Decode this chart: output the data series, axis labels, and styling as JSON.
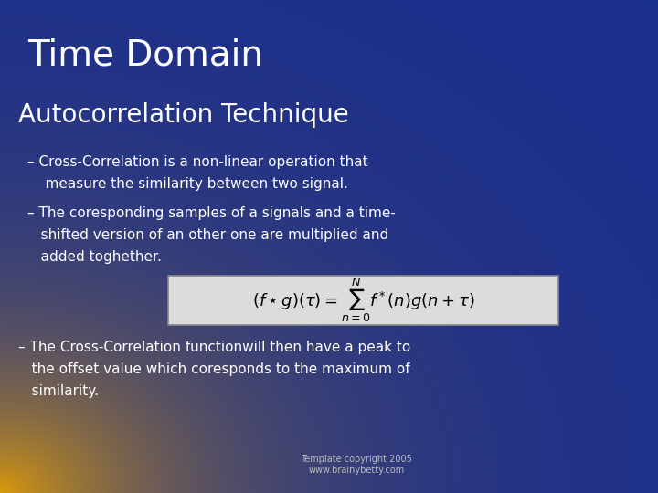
{
  "title": "Time Domain",
  "subtitle": "Autocorrelation Technique",
  "bullet1_line1": "– Cross-Correlation is a non-linear operation that",
  "bullet1_line2": "    measure the similarity between two signal.",
  "bullet2_line1": "– The coresponding samples of a signals and a time-",
  "bullet2_line2": "   shifted version of an other one are multiplied and",
  "bullet2_line3": "   added toghether.",
  "formula": "$(f \\star g)(\\tau) = \\sum_{n=0}^{N} f^*(n)g(n + \\tau)$",
  "bullet3_line1": "– The Cross-Correlation functionwill then have a peak to",
  "bullet3_line2": "   the offset value which coresponds to the maximum of",
  "bullet3_line3": "   similarity.",
  "copyright_line1": "Template copyright 2005",
  "copyright_line2": "www.brainybetty.com",
  "title_color": "#ffffff",
  "subtitle_color": "#ffffff",
  "body_color": "#ffffff",
  "formula_box_facecolor": "#dcdcdc",
  "formula_box_edgecolor": "#888888",
  "formula_text_color": "#000000",
  "copyright_color": "#bbbbbb",
  "title_fontsize": 28,
  "subtitle_fontsize": 20,
  "body_fontsize": 11,
  "formula_fontsize": 13,
  "copyright_fontsize": 7
}
